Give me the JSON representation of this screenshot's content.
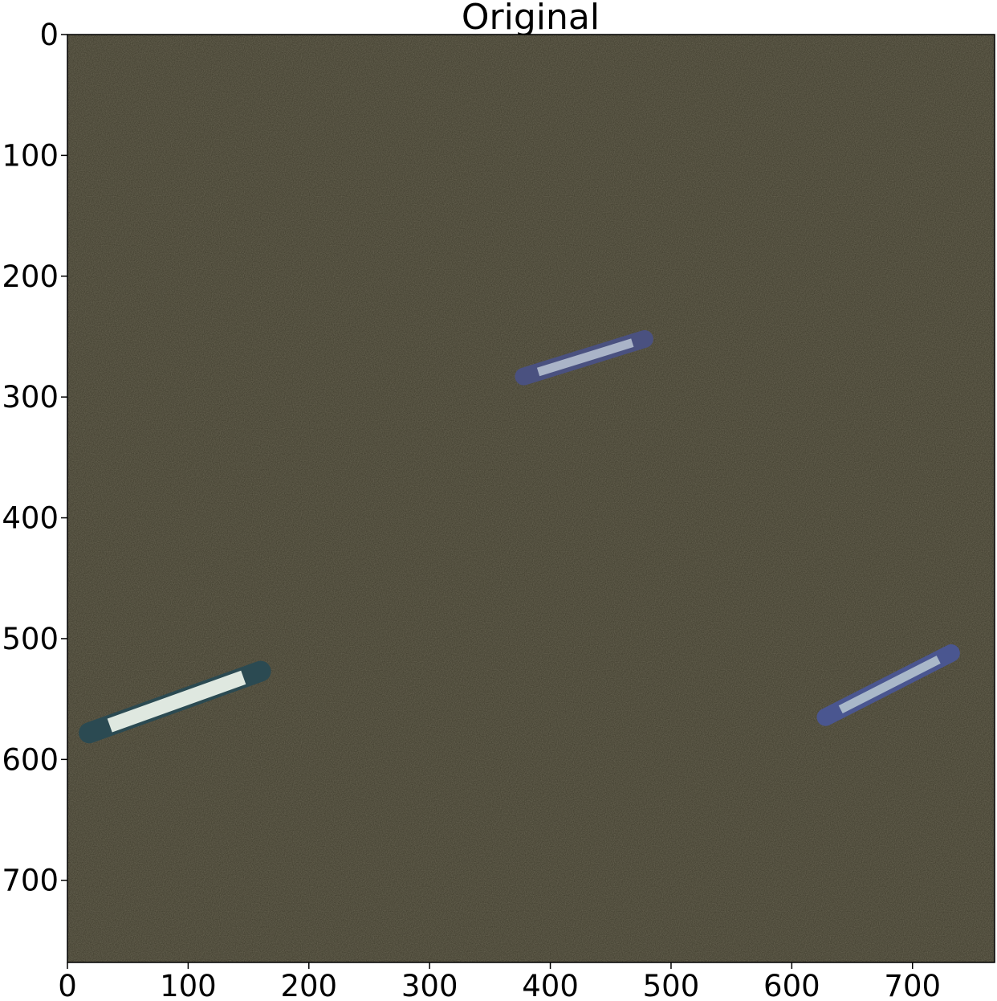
{
  "title": "Original",
  "image": {
    "width": 768,
    "height": 768,
    "water_color": "#3b3829",
    "ships": [
      {
        "name": "ship-top-center",
        "x1": 378,
        "y1": 283,
        "x2": 478,
        "y2": 252,
        "hull": "#4a5180",
        "deck": "#aab4c8"
      },
      {
        "name": "ship-bottom-left",
        "x1": 18,
        "y1": 578,
        "x2": 160,
        "y2": 527,
        "hull": "#2b4a52",
        "deck": "#dfe8e0"
      },
      {
        "name": "ship-bottom-right",
        "x1": 628,
        "y1": 565,
        "x2": 732,
        "y2": 512,
        "hull": "#4a5690",
        "deck": "#a9b8c9"
      }
    ]
  },
  "axes": {
    "x_ticks": [
      "0",
      "100",
      "200",
      "300",
      "400",
      "500",
      "600",
      "700"
    ],
    "y_ticks": [
      "0",
      "100",
      "200",
      "300",
      "400",
      "500",
      "600",
      "700"
    ]
  }
}
